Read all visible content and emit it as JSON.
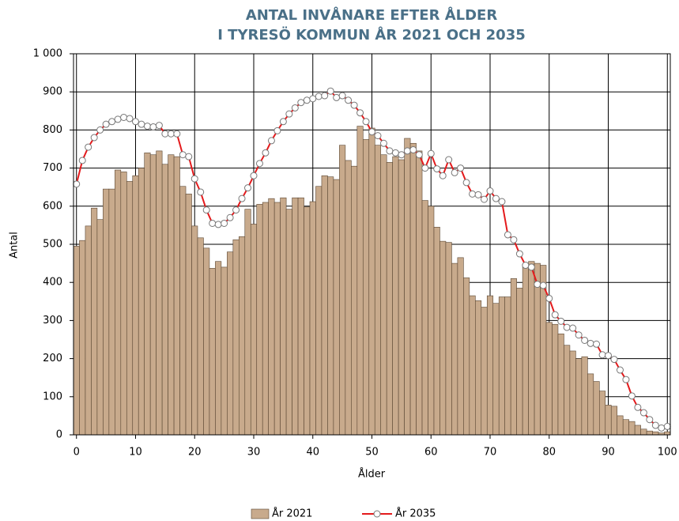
{
  "chart_data": {
    "type": "bar",
    "title_lines": [
      "ANTAL INVÅNARE EFTER ÅLDER",
      "I TYRESÖ KOMMUN ÅR 2021 OCH 2035"
    ],
    "x_label": "Ålder",
    "y_label": "Antal",
    "x": [
      0,
      1,
      2,
      3,
      4,
      5,
      6,
      7,
      8,
      9,
      10,
      11,
      12,
      13,
      14,
      15,
      16,
      17,
      18,
      19,
      20,
      21,
      22,
      23,
      24,
      25,
      26,
      27,
      28,
      29,
      30,
      31,
      32,
      33,
      34,
      35,
      36,
      37,
      38,
      39,
      40,
      41,
      42,
      43,
      44,
      45,
      46,
      47,
      48,
      49,
      50,
      51,
      52,
      53,
      54,
      55,
      56,
      57,
      58,
      59,
      60,
      61,
      62,
      63,
      64,
      65,
      66,
      67,
      68,
      69,
      70,
      71,
      72,
      73,
      74,
      75,
      76,
      77,
      78,
      79,
      80,
      81,
      82,
      83,
      84,
      85,
      86,
      87,
      88,
      89,
      90,
      91,
      92,
      93,
      94,
      95,
      96,
      97,
      98,
      99,
      100
    ],
    "series": [
      {
        "name": "År 2021",
        "type": "bar",
        "color": "#c8aa8c",
        "values": [
          495,
          510,
          548,
          595,
          565,
          645,
          645,
          695,
          690,
          665,
          680,
          700,
          740,
          735,
          745,
          710,
          735,
          730,
          652,
          632,
          548,
          517,
          490,
          437,
          455,
          440,
          480,
          512,
          520,
          592,
          553,
          605,
          610,
          620,
          610,
          622,
          592,
          622,
          622,
          598,
          612,
          652,
          680,
          677,
          670,
          760,
          720,
          705,
          810,
          775,
          805,
          760,
          735,
          715,
          730,
          722,
          778,
          765,
          745,
          615,
          600,
          545,
          508,
          505,
          450,
          465,
          412,
          365,
          352,
          335,
          365,
          345,
          362,
          362,
          410,
          385,
          442,
          455,
          450,
          445,
          295,
          290,
          265,
          235,
          220,
          200,
          205,
          160,
          140,
          115,
          78,
          75,
          50,
          40,
          35,
          25,
          15,
          10,
          8,
          5,
          8
        ]
      },
      {
        "name": "År 2035",
        "type": "line",
        "color": "#e41a1c",
        "values": [
          658,
          720,
          755,
          780,
          800,
          815,
          822,
          828,
          833,
          830,
          822,
          815,
          810,
          808,
          812,
          790,
          790,
          790,
          735,
          730,
          672,
          637,
          590,
          555,
          552,
          555,
          570,
          590,
          620,
          648,
          680,
          712,
          740,
          772,
          798,
          822,
          842,
          858,
          872,
          878,
          882,
          888,
          890,
          902,
          885,
          890,
          878,
          865,
          845,
          822,
          795,
          785,
          765,
          745,
          740,
          735,
          745,
          748,
          735,
          700,
          738,
          698,
          680,
          722,
          688,
          700,
          662,
          632,
          630,
          618,
          640,
          620,
          612,
          525,
          512,
          475,
          445,
          440,
          395,
          392,
          358,
          315,
          298,
          282,
          280,
          262,
          248,
          240,
          238,
          210,
          208,
          198,
          170,
          145,
          102,
          72,
          58,
          40,
          25,
          18,
          22
        ]
      }
    ],
    "xlim": [
      -0.5,
      100.5
    ],
    "xticks": [
      0,
      10,
      20,
      30,
      40,
      50,
      60,
      70,
      80,
      90,
      100
    ],
    "ylim": [
      0,
      1000
    ],
    "yticks": [
      0,
      100,
      200,
      300,
      400,
      500,
      600,
      700,
      800,
      900,
      {
        "value": 1000,
        "label": "1 000"
      }
    ],
    "grid": true,
    "legend": "bottom"
  }
}
